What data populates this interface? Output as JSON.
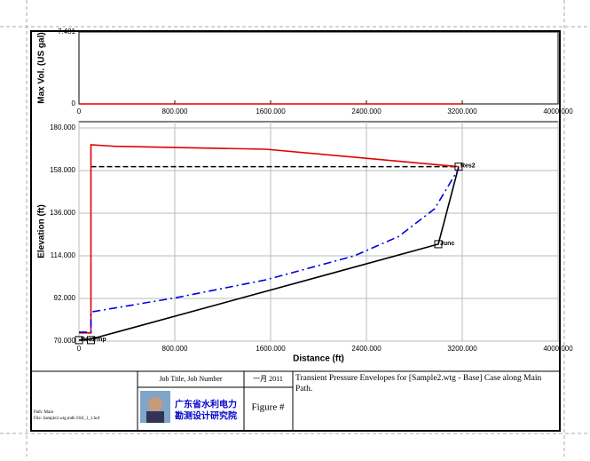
{
  "chart_data": [
    {
      "type": "line",
      "ylabel": "Max Vol. (US gal)",
      "xlim": [
        0,
        4000
      ],
      "ylim": [
        0,
        7.481
      ],
      "xticks": [
        0,
        {
          "value": 800,
          "label": "800.000"
        },
        {
          "value": 1600,
          "label": "1600.000"
        },
        {
          "value": 2400,
          "label": "2400.000"
        },
        {
          "value": 3200,
          "label": "3200.000"
        },
        {
          "value": 4000,
          "label": "4000.000"
        }
      ],
      "yticks": [
        0,
        7.481
      ],
      "grid": false,
      "series": [
        {
          "color": "#e00000",
          "line_style": "solid",
          "x": [
            0,
            3200
          ],
          "values": [
            0,
            0
          ]
        }
      ]
    },
    {
      "type": "line",
      "ylabel": "Elevation (ft)",
      "xlabel": "Distance (ft)",
      "xlim": [
        0,
        4000
      ],
      "ylim": [
        70,
        180
      ],
      "xticks": [
        0,
        {
          "value": 800,
          "label": "800.000"
        },
        {
          "value": 1600,
          "label": "1600.000"
        },
        {
          "value": 2400,
          "label": "2400.000"
        },
        {
          "value": 3200,
          "label": "3200.000"
        },
        {
          "value": 4000,
          "label": "4000.000"
        }
      ],
      "yticks": [
        {
          "value": 70,
          "label": "70.000"
        },
        {
          "value": 92,
          "label": "92.000"
        },
        {
          "value": 114,
          "label": "114.000"
        },
        {
          "value": 136,
          "label": "136.000"
        },
        {
          "value": 158,
          "label": "158.000"
        },
        {
          "value": 180,
          "label": "180.000"
        }
      ],
      "grid": true,
      "series": [
        {
          "color": "#000000",
          "line_style": "solid",
          "x": [
            0,
            100,
            3000,
            3170
          ],
          "values": [
            70.5,
            71,
            120,
            160
          ]
        },
        {
          "color": "#000000",
          "line_style": "dashed",
          "x": [
            100,
            3170
          ],
          "values": [
            160,
            160
          ]
        },
        {
          "color": "#e00000",
          "line_style": "solid",
          "x": [
            0,
            100,
            100,
            300,
            1560,
            3170
          ],
          "values": [
            74.2,
            74.2,
            171.3,
            170.5,
            169,
            160
          ]
        },
        {
          "color": "#0000e0",
          "line_style": "dashdot",
          "x": [
            0,
            100,
            100,
            820,
            1560,
            2300,
            2670,
            2970,
            3170
          ],
          "values": [
            74.6,
            74.6,
            85,
            92.5,
            101.6,
            114,
            124,
            138.3,
            159
          ]
        }
      ],
      "annotations": [
        {
          "text": "Res2",
          "x": 3170,
          "y": 160
        },
        {
          "text": "Junc",
          "x": 3000,
          "y": 120
        },
        {
          "text": "Res1",
          "x": 0,
          "y": 70.5
        },
        {
          "text": "Pmp",
          "x": 100,
          "y": 70.5
        }
      ]
    }
  ],
  "title_block": {
    "path": "Path: Main",
    "file": "File: Sample2.wtg.mdb SSS_1_1.hof",
    "job": "Job Title, Job Number",
    "org_line1": "广东省水利电力",
    "org_line2": "勘测设计研究院",
    "date": "一月 2011",
    "figure": "Figure #",
    "description": "Transient Pressure Envelopes for [Sample2.wtg - Base] Case along Main Path."
  }
}
